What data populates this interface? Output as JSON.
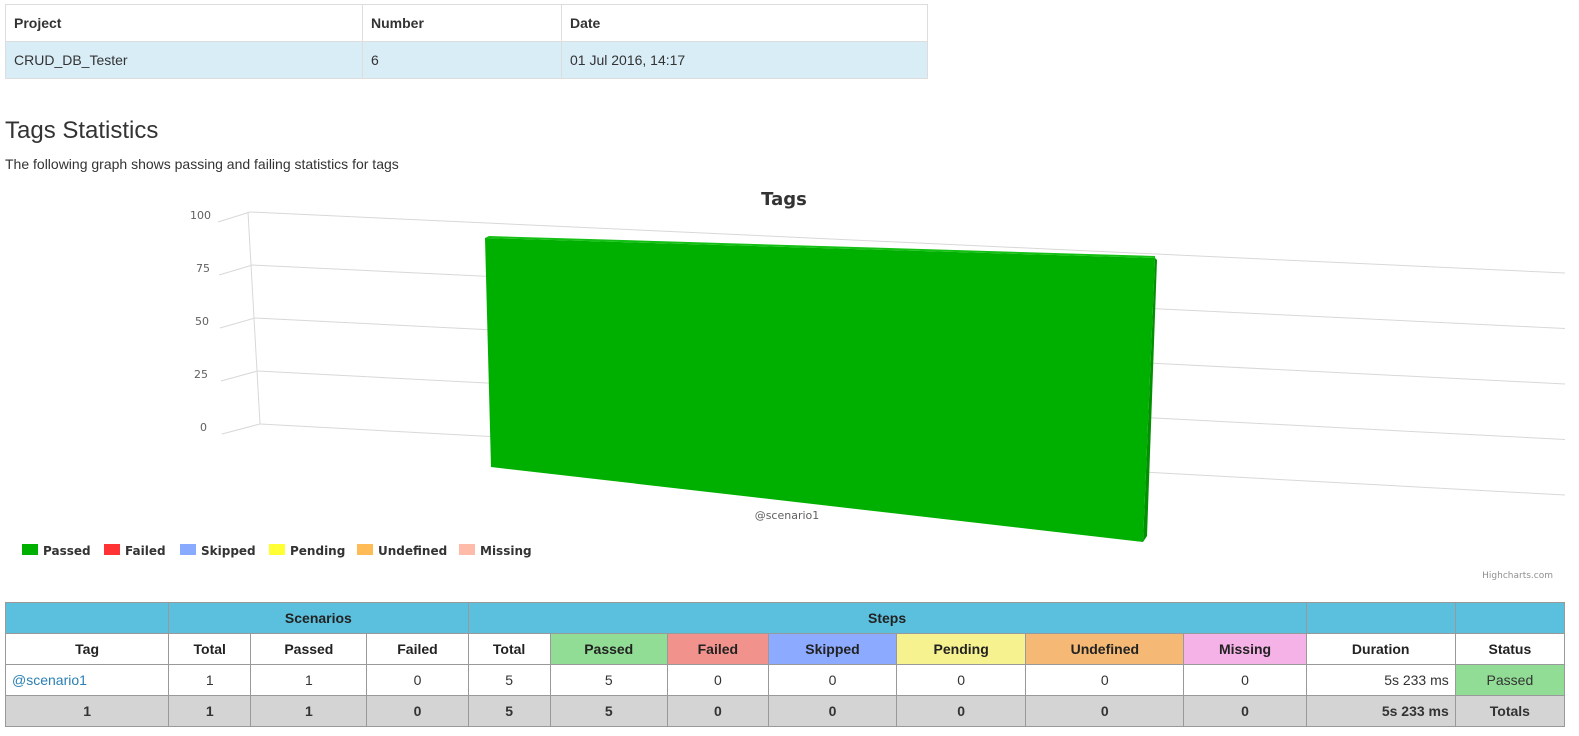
{
  "project_table": {
    "headers": [
      "Project",
      "Number",
      "Date"
    ],
    "row": [
      "CRUD_DB_Tester",
      "6",
      "01 Jul 2016, 14:17"
    ]
  },
  "section": {
    "title": "Tags Statistics",
    "description": "The following graph shows passing and failing statistics for tags"
  },
  "chart_data": {
    "type": "bar",
    "title": "Tags",
    "categories": [
      "@scenario1"
    ],
    "series": [
      {
        "name": "Passed",
        "values": [
          100
        ],
        "color": "#00b000"
      },
      {
        "name": "Failed",
        "values": [
          0
        ],
        "color": "#ff3333"
      },
      {
        "name": "Skipped",
        "values": [
          0
        ],
        "color": "#88aaff"
      },
      {
        "name": "Pending",
        "values": [
          0
        ],
        "color": "#ffff33"
      },
      {
        "name": "Undefined",
        "values": [
          0
        ],
        "color": "#ffbb55"
      },
      {
        "name": "Missing",
        "values": [
          0
        ],
        "color": "#ffbbaa"
      }
    ],
    "yticks": [
      "0",
      "25",
      "50",
      "75",
      "100"
    ],
    "ylim": [
      0,
      100
    ],
    "stacked": true,
    "legend_position": "bottom-left",
    "credits": "Highcharts.com"
  },
  "stats_table": {
    "group_headers": {
      "scenarios": "Scenarios",
      "steps": "Steps"
    },
    "columns": [
      "Tag",
      "Total",
      "Passed",
      "Failed",
      "Total",
      "Passed",
      "Failed",
      "Skipped",
      "Pending",
      "Undefined",
      "Missing",
      "Duration",
      "Status"
    ],
    "row": {
      "tag": "@scenario1",
      "scn_total": "1",
      "scn_passed": "1",
      "scn_failed": "0",
      "st_total": "5",
      "st_passed": "5",
      "st_failed": "0",
      "st_skipped": "0",
      "st_pending": "0",
      "st_undefined": "0",
      "st_missing": "0",
      "duration": "5s 233 ms",
      "status": "Passed"
    },
    "totals": {
      "tag": "1",
      "scn_total": "1",
      "scn_passed": "1",
      "scn_failed": "0",
      "st_total": "5",
      "st_passed": "5",
      "st_failed": "0",
      "st_skipped": "0",
      "st_pending": "0",
      "st_undefined": "0",
      "st_missing": "0",
      "duration": "5s 233 ms",
      "status": "Totals"
    },
    "colors": {
      "passed": "#92dd96",
      "failed": "#f2928c",
      "skipped": "#8caaff",
      "pending": "#f5f28f",
      "undefined": "#f5b975",
      "missing": "#f5b2e6",
      "header": "#5bc0de",
      "totals": "#d4d4d4"
    }
  }
}
